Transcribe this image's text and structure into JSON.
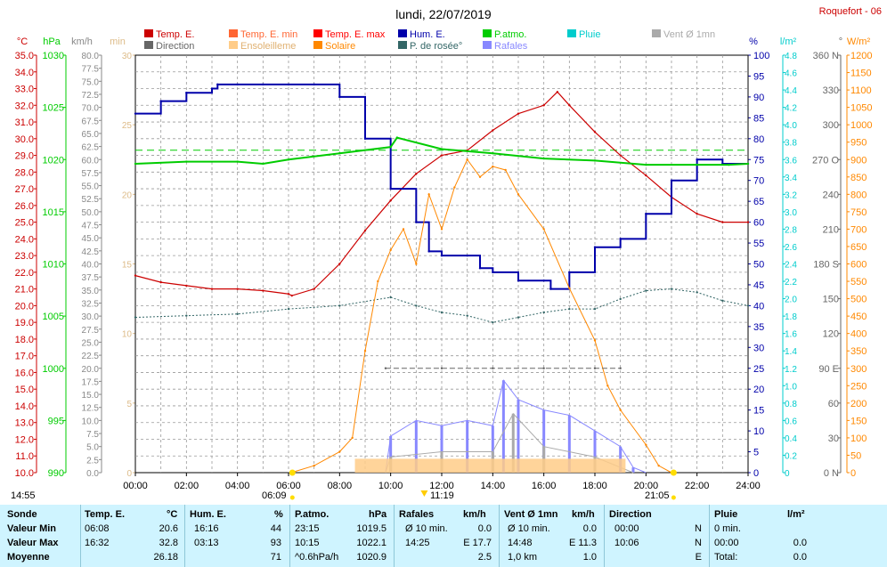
{
  "header": {
    "title": "lundi, 22/07/2019",
    "station": "Roquefort - 06"
  },
  "colors": {
    "temp": "#cc0000",
    "temp_min": "#ff6633",
    "temp_max": "#ff0000",
    "direction": "#666666",
    "ensoleillement": "#ffcc88",
    "solaire": "#ff8800",
    "hum": "#0000aa",
    "dew": "#336666",
    "patmo": "#00cc00",
    "pluie": "#00cccc",
    "vent": "#aaaaaa",
    "rafales": "#8888ff",
    "band": "#cff4ff"
  },
  "legend": [
    {
      "label": "Temp. E.",
      "color": "#cc0000"
    },
    {
      "label": "Temp. E. min",
      "color": "#ff6633"
    },
    {
      "label": "Temp. E. max",
      "color": "#ff0000"
    },
    {
      "label": "Hum. E.",
      "color": "#0000aa"
    },
    {
      "label": "P.atmo.",
      "color": "#00cc00"
    },
    {
      "label": "Pluie",
      "color": "#00cccc"
    },
    {
      "label": "Vent Ø 1mn",
      "color": "#aaaaaa"
    },
    {
      "label": "Direction",
      "color": "#666666"
    },
    {
      "label": "Ensoleilleme",
      "color": "#ffcc88"
    },
    {
      "label": "Solaire",
      "color": "#ff8800"
    },
    {
      "label": "P. de rosée°",
      "color": "#336666"
    },
    {
      "label": "Rafales",
      "color": "#8888ff"
    }
  ],
  "units": {
    "temp": "°C",
    "hpa": "hPa",
    "kmh": "km/h",
    "min": "min",
    "pct": "%",
    "lm2": "l/m²",
    "deg": "°",
    "wm2": "W/m²"
  },
  "axes": {
    "x_ticks": [
      "00:00",
      "02:00",
      "04:00",
      "06:00",
      "08:00",
      "10:00",
      "12:00",
      "14:00",
      "16:00",
      "18:00",
      "20:00",
      "22:00",
      "24:00"
    ],
    "temp_ticks": [
      "10.0",
      "11.0",
      "12.0",
      "13.0",
      "14.0",
      "15.0",
      "16.0",
      "17.0",
      "18.0",
      "19.0",
      "20.0",
      "21.0",
      "22.0",
      "23.0",
      "24.0",
      "25.0",
      "26.0",
      "27.0",
      "28.0",
      "29.0",
      "30.0",
      "31.0",
      "32.0",
      "33.0",
      "34.0",
      "35.0"
    ],
    "hpa_ticks": [
      "990",
      "995",
      "1000",
      "1005",
      "1010",
      "1015",
      "1020",
      "1025",
      "1030"
    ],
    "kmh_ticks": [
      "0.0",
      "2.5",
      "5.0",
      "7.5",
      "10.0",
      "12.5",
      "15.0",
      "17.5",
      "20.0",
      "22.5",
      "25.0",
      "27.5",
      "30.0",
      "32.5",
      "35.0",
      "37.5",
      "40.0",
      "42.5",
      "45.0",
      "47.5",
      "50.0",
      "52.5",
      "55.0",
      "57.5",
      "60.0",
      "62.5",
      "65.0",
      "67.5",
      "70.0",
      "72.5",
      "75.0",
      "77.5",
      "80.0"
    ],
    "min_ticks": [
      "0",
      "5",
      "10",
      "15",
      "20",
      "25",
      "30"
    ],
    "pct_ticks": [
      "0",
      "5",
      "10",
      "15",
      "20",
      "25",
      "30",
      "35",
      "40",
      "45",
      "50",
      "55",
      "60",
      "65",
      "70",
      "75",
      "80",
      "85",
      "90",
      "95",
      "100"
    ],
    "lm2_ticks": [
      "0",
      "0.2",
      "0.4",
      "0.6",
      "0.8",
      "1.0",
      "1.2",
      "1.4",
      "1.6",
      "1.8",
      "2.0",
      "2.2",
      "2.4",
      "2.6",
      "2.8",
      "3.0",
      "3.2",
      "3.4",
      "3.6",
      "3.8",
      "4.0",
      "4.2",
      "4.4",
      "4.6",
      "4.8"
    ],
    "deg_ticks": [
      "0 N",
      "30",
      "60",
      "90 E",
      "120",
      "150",
      "180 S",
      "210",
      "240",
      "270 O",
      "300",
      "330",
      "360 N"
    ],
    "wm2_ticks": [
      "0",
      "50",
      "100",
      "150",
      "200",
      "250",
      "300",
      "350",
      "400",
      "450",
      "500",
      "550",
      "600",
      "650",
      "700",
      "750",
      "800",
      "850",
      "900",
      "950",
      "1000",
      "1050",
      "1100",
      "1150",
      "1200"
    ]
  },
  "markers": {
    "sunrise": "06:09",
    "sunset": "21:05",
    "solar_noon": "11:19",
    "left_time": "14:55"
  },
  "chart_data": {
    "type": "line",
    "title": "lundi, 22/07/2019",
    "x_range_hours": [
      0,
      24
    ],
    "series": [
      {
        "name": "Temp. E.",
        "unit": "°C",
        "points": [
          [
            0,
            21.8
          ],
          [
            1,
            21.4
          ],
          [
            2,
            21.2
          ],
          [
            3,
            21.0
          ],
          [
            4,
            21.0
          ],
          [
            5,
            20.9
          ],
          [
            6,
            20.7
          ],
          [
            6.13,
            20.6
          ],
          [
            7,
            21.0
          ],
          [
            8,
            22.5
          ],
          [
            9,
            24.5
          ],
          [
            10,
            26.3
          ],
          [
            11,
            27.9
          ],
          [
            12,
            29.0
          ],
          [
            13,
            29.3
          ],
          [
            14,
            30.5
          ],
          [
            15,
            31.5
          ],
          [
            16,
            32.0
          ],
          [
            16.53,
            32.8
          ],
          [
            17,
            32.0
          ],
          [
            18,
            30.4
          ],
          [
            19,
            29.0
          ],
          [
            20,
            27.8
          ],
          [
            21,
            26.5
          ],
          [
            22,
            25.5
          ],
          [
            23,
            25.0
          ],
          [
            24,
            25.0
          ]
        ]
      },
      {
        "name": "Hum. E.",
        "unit": "%",
        "points": [
          [
            0,
            86
          ],
          [
            1,
            89
          ],
          [
            2,
            91
          ],
          [
            3,
            92
          ],
          [
            3.22,
            93
          ],
          [
            4,
            93
          ],
          [
            5,
            93
          ],
          [
            6,
            93
          ],
          [
            7,
            93
          ],
          [
            8,
            90
          ],
          [
            9,
            80
          ],
          [
            10,
            68
          ],
          [
            11,
            60
          ],
          [
            11.5,
            53
          ],
          [
            12,
            52
          ],
          [
            13,
            52
          ],
          [
            13.5,
            49
          ],
          [
            14,
            48
          ],
          [
            15,
            46
          ],
          [
            16,
            46
          ],
          [
            16.27,
            44
          ],
          [
            17,
            48
          ],
          [
            18,
            54
          ],
          [
            19,
            56
          ],
          [
            20,
            62
          ],
          [
            21,
            70
          ],
          [
            22,
            75
          ],
          [
            23,
            74
          ],
          [
            24,
            74
          ]
        ]
      },
      {
        "name": "P.atmo.",
        "unit": "hPa",
        "points": [
          [
            0,
            1019.6
          ],
          [
            2,
            1019.8
          ],
          [
            4,
            1019.8
          ],
          [
            5,
            1019.6
          ],
          [
            6,
            1020.0
          ],
          [
            8,
            1020.6
          ],
          [
            10,
            1021.2
          ],
          [
            10.25,
            1022.1
          ],
          [
            12,
            1021.0
          ],
          [
            14,
            1020.6
          ],
          [
            16,
            1020.1
          ],
          [
            18,
            1019.9
          ],
          [
            20,
            1019.5
          ],
          [
            22,
            1019.5
          ],
          [
            23.25,
            1019.5
          ],
          [
            24,
            1019.6
          ]
        ]
      },
      {
        "name": "P. de rosée°",
        "unit": "°C",
        "points": [
          [
            0,
            19.3
          ],
          [
            2,
            19.4
          ],
          [
            4,
            19.5
          ],
          [
            6,
            19.8
          ],
          [
            8,
            20.0
          ],
          [
            10,
            20.5
          ],
          [
            11,
            20.0
          ],
          [
            12,
            19.6
          ],
          [
            13,
            19.4
          ],
          [
            14,
            19.0
          ],
          [
            15,
            19.3
          ],
          [
            16,
            19.6
          ],
          [
            17,
            19.8
          ],
          [
            18,
            19.8
          ],
          [
            19,
            20.4
          ],
          [
            20,
            20.9
          ],
          [
            21,
            21.0
          ],
          [
            22,
            20.8
          ],
          [
            23,
            20.3
          ],
          [
            24,
            20.0
          ]
        ]
      },
      {
        "name": "Solaire",
        "unit": "W/m²",
        "points": [
          [
            6.1,
            0
          ],
          [
            7,
            20
          ],
          [
            8,
            60
          ],
          [
            8.5,
            100
          ],
          [
            9,
            350
          ],
          [
            9.5,
            550
          ],
          [
            10,
            640
          ],
          [
            10.5,
            700
          ],
          [
            11,
            600
          ],
          [
            11.5,
            800
          ],
          [
            12,
            700
          ],
          [
            12.5,
            820
          ],
          [
            13,
            900
          ],
          [
            13.5,
            850
          ],
          [
            14,
            880
          ],
          [
            14.5,
            870
          ],
          [
            15,
            800
          ],
          [
            16,
            700
          ],
          [
            17,
            530
          ],
          [
            18,
            380
          ],
          [
            18.5,
            250
          ],
          [
            19,
            180
          ],
          [
            20,
            80
          ],
          [
            20.5,
            20
          ],
          [
            21,
            0
          ]
        ]
      },
      {
        "name": "Rafales",
        "unit": "km/h",
        "points": [
          [
            9.8,
            0
          ],
          [
            10,
            7
          ],
          [
            11,
            10
          ],
          [
            12,
            9
          ],
          [
            13,
            10
          ],
          [
            14,
            9
          ],
          [
            14.42,
            17.7
          ],
          [
            15,
            14
          ],
          [
            16,
            12
          ],
          [
            17,
            11
          ],
          [
            18,
            8
          ],
          [
            19,
            5
          ],
          [
            19.5,
            1
          ],
          [
            20,
            0
          ]
        ]
      },
      {
        "name": "Vent Ø 1mn",
        "unit": "km/h",
        "points": [
          [
            9.8,
            0
          ],
          [
            10,
            3
          ],
          [
            12,
            4
          ],
          [
            14,
            4
          ],
          [
            14.8,
            11.3
          ],
          [
            16,
            5
          ],
          [
            18,
            3
          ],
          [
            19.5,
            0
          ]
        ]
      },
      {
        "name": "Ensoleilleme",
        "unit": "min",
        "points": [
          [
            8.6,
            1
          ],
          [
            9.8,
            1
          ],
          [
            12,
            1
          ],
          [
            15,
            1
          ],
          [
            18,
            1
          ],
          [
            19.2,
            1
          ]
        ]
      },
      {
        "name": "Direction",
        "unit": "°",
        "points": [
          [
            9.8,
            90
          ],
          [
            12,
            90
          ],
          [
            14,
            90
          ],
          [
            16,
            90
          ],
          [
            18,
            90
          ],
          [
            19,
            90
          ]
        ]
      }
    ],
    "reference_line": {
      "series": "P.atmo. moyenne",
      "value": 1020.9,
      "unit": "hPa"
    }
  },
  "table": {
    "headers": [
      "Sonde",
      "Temp. E.",
      "°C",
      "Hum. E.",
      "%",
      "P.atmo.",
      "hPa",
      "Rafales",
      "km/h",
      "Vent Ø 1mn",
      "km/h",
      "Direction",
      "Pluie",
      "l/m²"
    ],
    "rows": [
      {
        "label": "Valeur Min",
        "t_time": "06:08",
        "t_val": "20.6",
        "h_time": "16:16",
        "h_val": "44",
        "p_time": "23:15",
        "p_val": "1019.5",
        "r_time": "Ø 10 min.",
        "r_val": "0.0",
        "v_time": "Ø 10 min.",
        "v_val": "0.0",
        "d_time": "00:00",
        "d_val": "N",
        "pl_time": "0 min.",
        "pl_val": ""
      },
      {
        "label": "Valeur Max",
        "t_time": "16:32",
        "t_val": "32.8",
        "h_time": "03:13",
        "h_val": "93",
        "p_time": "10:15",
        "p_val": "1022.1",
        "r_time": "14:25",
        "r_val": "E 17.7",
        "v_time": "14:48",
        "v_val": "E 11.3",
        "d_time": "10:06",
        "d_val": "N",
        "pl_time": "00:00",
        "pl_val": "0.0"
      },
      {
        "label": "Moyenne",
        "t_time": "",
        "t_val": "26.18",
        "h_time": "",
        "h_val": "71",
        "p_time": "^0.6hPa/h",
        "p_val": "1020.9",
        "r_time": "",
        "r_val": "2.5",
        "v_time": "1,0 km",
        "v_val": "1.0",
        "d_time": "",
        "d_val": "E",
        "pl_time": "Total:",
        "pl_val": "0.0"
      }
    ]
  }
}
